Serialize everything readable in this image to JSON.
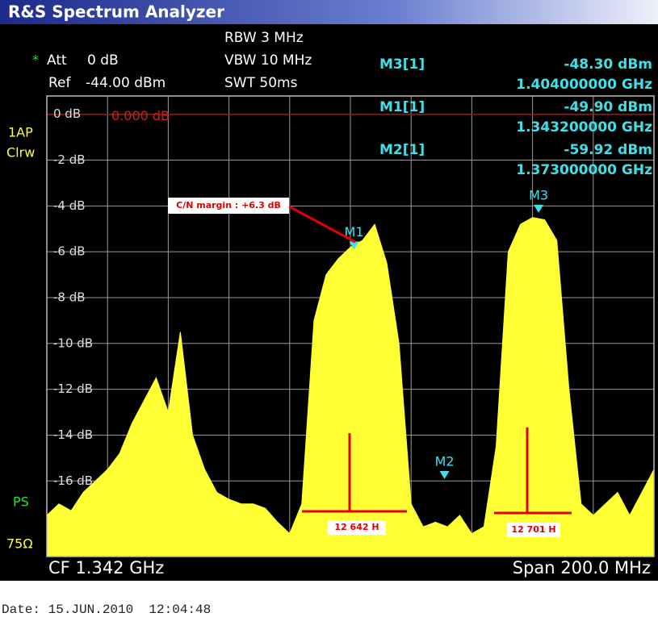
{
  "chart_data": {
    "type": "area",
    "title": "R&S Spectrum Analyzer",
    "settings": {
      "att_star": "*",
      "att_label": "Att",
      "att_value": "0 dB",
      "ref_label": "Ref",
      "rbw": "RBW 3 MHz",
      "vbw": "VBW 10 MHz",
      "swt": "SWT 50ms",
      "trace_mode_1": "1AP",
      "trace_mode_2": "Clrw",
      "ps": "PS",
      "impedance": "75Ω"
    },
    "ref_level": {
      "value": -44,
      "label": "-44.00 dBm"
    },
    "ref_line": {
      "value": 0,
      "label": "0.000 dB"
    },
    "x": [
      1.242,
      1.246,
      1.25,
      1.254,
      1.258,
      1.262,
      1.266,
      1.27,
      1.274,
      1.278,
      1.282,
      1.286,
      1.29,
      1.294,
      1.298,
      1.302,
      1.306,
      1.31,
      1.314,
      1.318,
      1.322,
      1.326,
      1.33,
      1.334,
      1.338,
      1.342,
      1.346,
      1.35,
      1.354,
      1.358,
      1.362,
      1.366,
      1.37,
      1.374,
      1.378,
      1.382,
      1.386,
      1.39,
      1.394,
      1.398,
      1.402,
      1.406,
      1.41,
      1.414,
      1.418,
      1.422,
      1.426,
      1.43,
      1.434,
      1.438,
      1.442
    ],
    "values": [
      -17.5,
      -17,
      -17.3,
      -16.5,
      -16,
      -15.5,
      -14.8,
      -13.5,
      -12.5,
      -11.5,
      -13,
      -9.5,
      -14,
      -15.5,
      -16.5,
      -16.8,
      -17,
      -17,
      -17.2,
      -17.8,
      -18.3,
      -17,
      -9,
      -7,
      -6.3,
      -5.8,
      -5.5,
      -4.8,
      -6.5,
      -10,
      -17,
      -18,
      -17.8,
      -18,
      -17.5,
      -18.3,
      -18,
      -14.5,
      -6,
      -4.8,
      -4.5,
      -4.6,
      -5.5,
      -12,
      -17,
      -17.5,
      -17,
      -16.5,
      -17.5,
      -16.5,
      -15.5
    ],
    "color": "#ffff33",
    "xlim": [
      1.242,
      1.442
    ],
    "ylim": [
      -19.3,
      0.8
    ],
    "yticks": [
      {
        "value": 0,
        "label": "0 dB"
      },
      {
        "value": -2,
        "label": "-2 dB"
      },
      {
        "value": -4,
        "label": "-4 dB"
      },
      {
        "value": -6,
        "label": "-6 dB"
      },
      {
        "value": -8,
        "label": "-8 dB"
      },
      {
        "value": -10,
        "label": "-10 dB"
      },
      {
        "value": -12,
        "label": "-12 dB"
      },
      {
        "value": -14,
        "label": "-14 dB"
      },
      {
        "value": -16,
        "label": "-16 dB"
      }
    ],
    "grid": true,
    "markers": [
      {
        "name": "M3",
        "table_label": "M3[1]",
        "level": {
          "value": -48.3,
          "label": "-48.30 dBm"
        },
        "freq": {
          "value": 1.404,
          "label": "1.404000000 GHz"
        }
      },
      {
        "name": "M1",
        "table_label": "M1[1]",
        "level": {
          "value": -49.9,
          "label": "-49.90 dBm"
        },
        "freq": {
          "value": 1.3432,
          "label": "1.343200000 GHz"
        }
      },
      {
        "name": "M2",
        "table_label": "M2[1]",
        "level": {
          "value": -59.92,
          "label": "-59.92 dBm"
        },
        "freq": {
          "value": 1.373,
          "label": "1.373000000 GHz"
        }
      }
    ],
    "annotations": [
      "C/N margin : +6.3 dB",
      "12 642 H",
      "12 701 H"
    ],
    "center_freq": "CF 1.342 GHz",
    "span": "Span 200.0 MHz",
    "date": "Date: 15.JUN.2010  12:04:48"
  }
}
